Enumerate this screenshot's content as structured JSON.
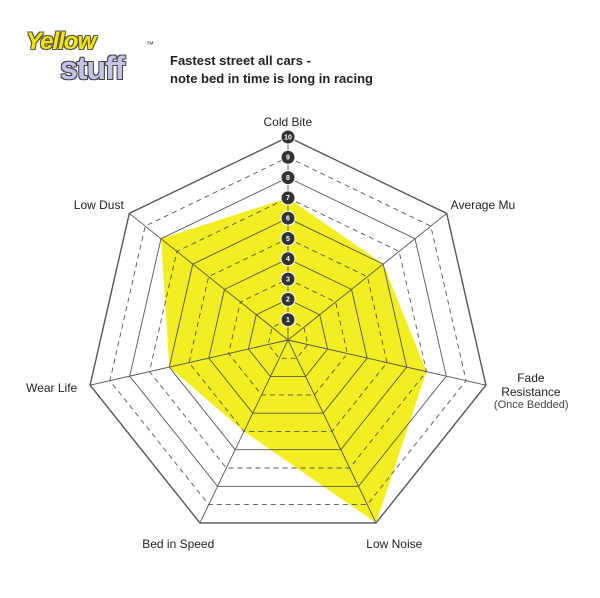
{
  "logo": {
    "line1": "Yellow",
    "line2": "stuff",
    "mark": "™"
  },
  "chart_data": {
    "type": "radar",
    "subtitle": [
      "Fastest street all cars -",
      "note bed in time is long in racing"
    ],
    "categories": [
      "Cold Bite",
      "Average Mu",
      "Fade Resistance",
      "Low Noise",
      "Bed in Speed",
      "Wear Life",
      "Low Dust"
    ],
    "annotation": "(Once Bedded)",
    "values": [
      7,
      6,
      7,
      10,
      5,
      6,
      8
    ],
    "color": "#f2ee22",
    "rlim": [
      0,
      10
    ],
    "rticks": [
      1,
      2,
      3,
      4,
      5,
      6,
      7,
      8,
      9,
      10
    ],
    "grid": true
  }
}
